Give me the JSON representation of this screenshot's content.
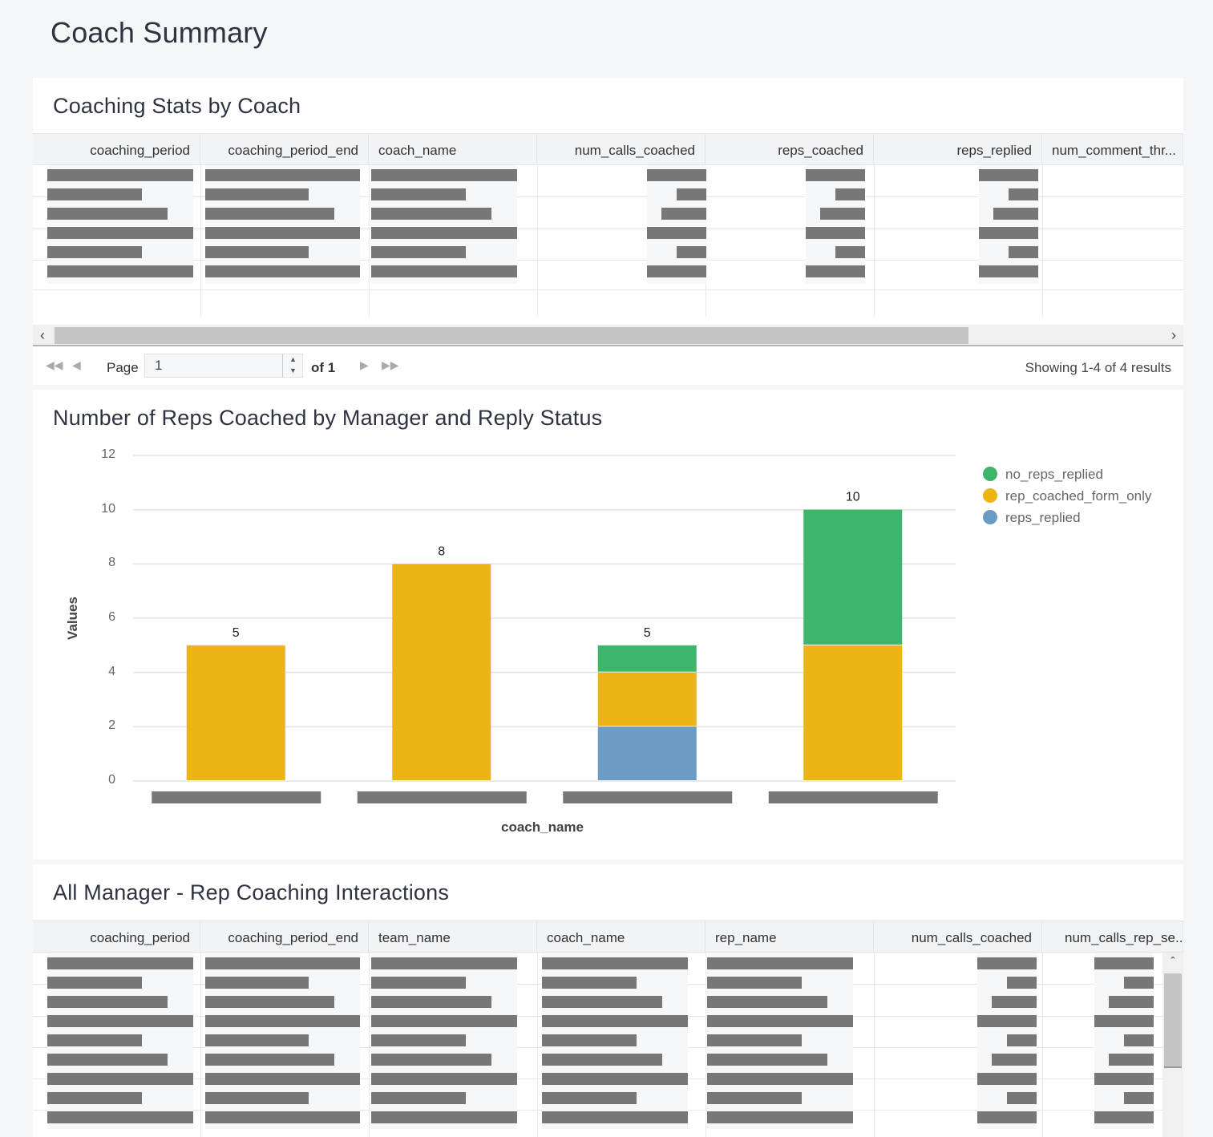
{
  "page": {
    "title": "Coach Summary"
  },
  "stats_panel": {
    "title": "Coaching Stats by Coach",
    "columns": [
      "coaching_period",
      "coaching_period_end",
      "coach_name",
      "num_calls_coached",
      "reps_coached",
      "reps_replied",
      "num_comment_thr..."
    ],
    "pager": {
      "page_label": "Page",
      "page_value": "1",
      "of_label": "of 1",
      "status": "Showing 1-4 of 4 results"
    }
  },
  "chart_panel": {
    "title": "Number of Reps Coached by Manager and Reply Status",
    "legend": [
      {
        "label": "no_reps_replied",
        "color": "#3db56a"
      },
      {
        "label": "rep_coached_form_only",
        "color": "#ecb414"
      },
      {
        "label": "reps_replied",
        "color": "#6a9cc4"
      }
    ]
  },
  "chart_data": {
    "type": "bar",
    "stacked": true,
    "title": "Number of Reps Coached by Manager and Reply Status",
    "xlabel": "coach_name",
    "ylabel": "Values",
    "ylim": [
      0,
      12
    ],
    "yticks": [
      "0",
      "2",
      "4",
      "6",
      "8",
      "10",
      "12"
    ],
    "categories": [
      "",
      "",
      "",
      ""
    ],
    "series": [
      {
        "name": "reps_replied",
        "color": "#6a9cc4",
        "values": [
          0,
          0,
          2,
          0
        ]
      },
      {
        "name": "rep_coached_form_only",
        "color": "#ecb414",
        "values": [
          5,
          8,
          2,
          5
        ]
      },
      {
        "name": "no_reps_replied",
        "color": "#3db56a",
        "values": [
          0,
          0,
          1,
          5
        ]
      }
    ],
    "totals": [
      "5",
      "8",
      "5",
      "10"
    ]
  },
  "interactions_panel": {
    "title": "All Manager - Rep Coaching Interactions",
    "columns": [
      "coaching_period",
      "coaching_period_end",
      "team_name",
      "coach_name",
      "rep_name",
      "num_calls_coached",
      "num_calls_rep_se..."
    ]
  }
}
